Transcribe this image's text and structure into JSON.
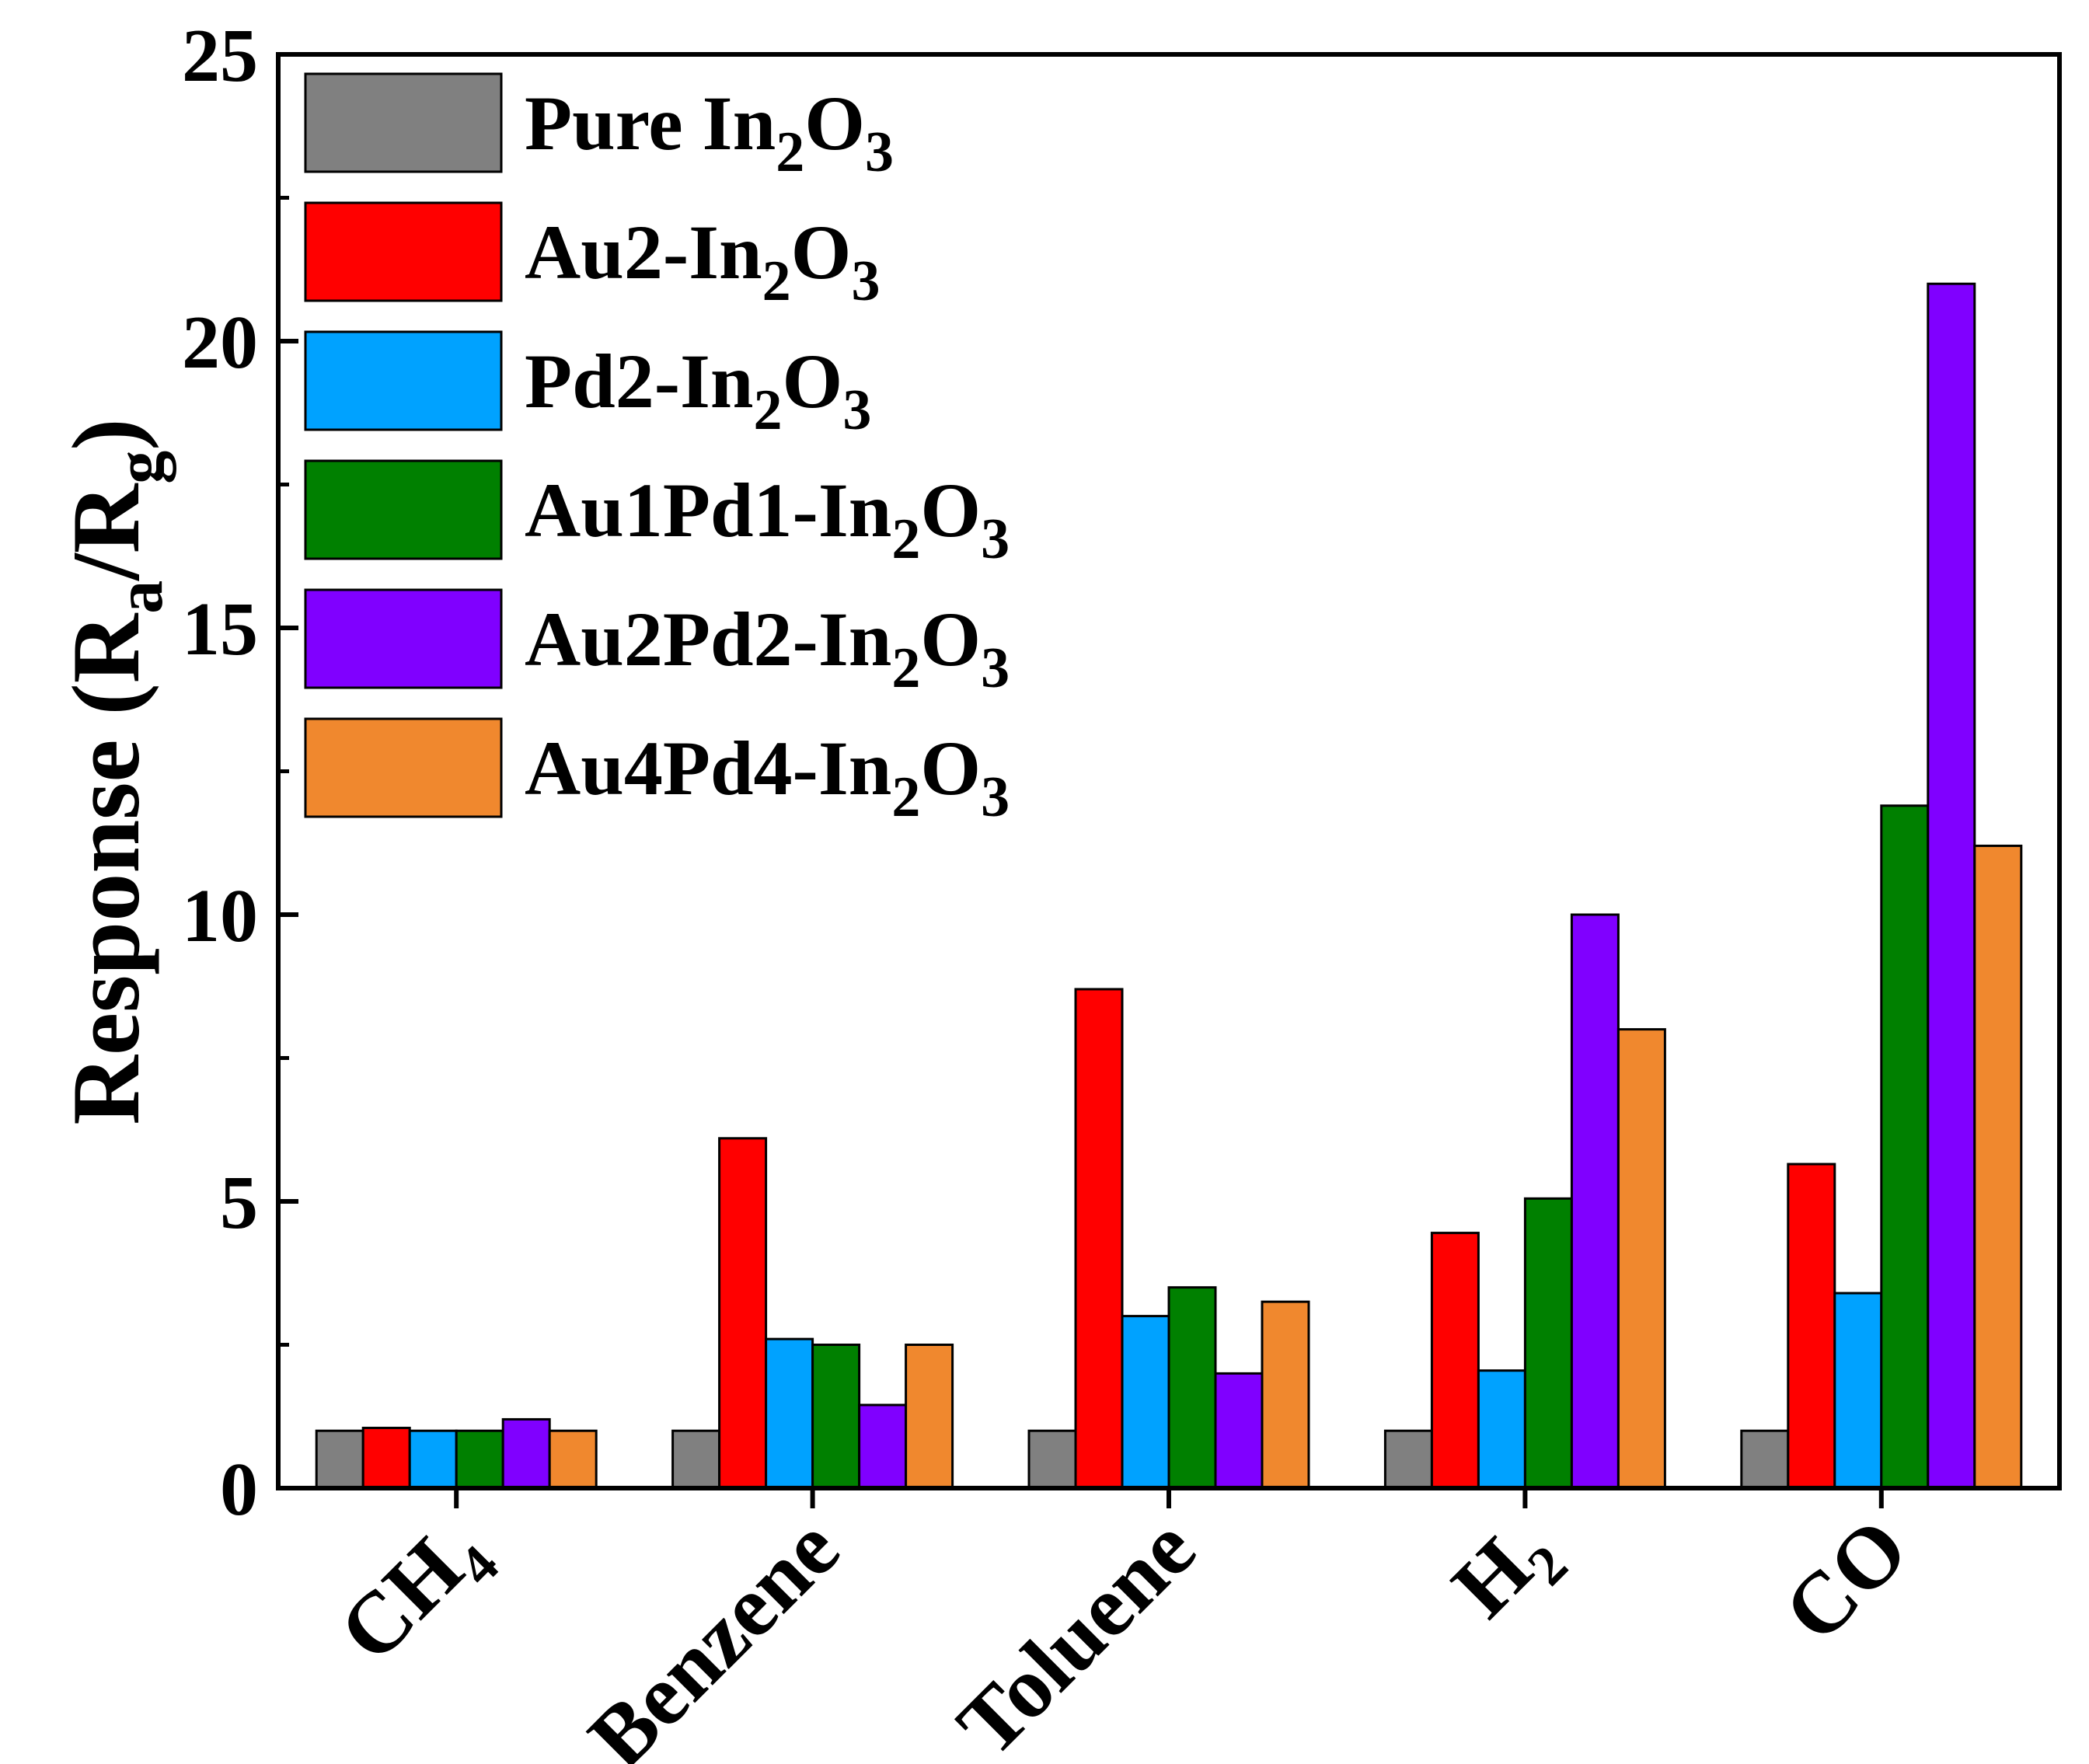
{
  "chart_data": {
    "type": "bar",
    "title": "",
    "xlabel": "",
    "ylabel": {
      "main": "Response (R",
      "sub_a": "a",
      "slash": "/R",
      "sub_g": "g",
      "close": ")"
    },
    "ylim": [
      0,
      25
    ],
    "yticks": [
      "0",
      "5",
      "10",
      "15",
      "20",
      "25"
    ],
    "grid": false,
    "legend_position": "top-left",
    "categories": [
      {
        "main": "CH",
        "sub": "4"
      },
      {
        "main": "Benzene",
        "sub": ""
      },
      {
        "main": "Toluene",
        "sub": ""
      },
      {
        "main": "H",
        "sub": "2"
      },
      {
        "main": "CO",
        "sub": ""
      }
    ],
    "series": [
      {
        "name": "Pure In2O3",
        "label_prefix": "Pure In",
        "color": "#808080",
        "values": [
          1.0,
          1.0,
          1.0,
          1.0,
          1.0
        ]
      },
      {
        "name": "Au2-In2O3",
        "label_prefix": "Au2-In",
        "color": "#ff0000",
        "values": [
          1.05,
          6.1,
          8.7,
          4.45,
          5.65
        ]
      },
      {
        "name": "Pd2-In2O3",
        "label_prefix": "Pd2-In",
        "color": "#00a2ff",
        "values": [
          1.0,
          2.6,
          3.0,
          2.05,
          3.4
        ]
      },
      {
        "name": "Au1Pd1-In2O3",
        "label_prefix": "Au1Pd1-In",
        "color": "#008000",
        "values": [
          1.0,
          2.5,
          3.5,
          5.05,
          11.9
        ]
      },
      {
        "name": "Au2Pd2-In2O3",
        "label_prefix": "Au2Pd2-In",
        "color": "#8000ff",
        "values": [
          1.2,
          1.45,
          2.0,
          10.0,
          21.0
        ]
      },
      {
        "name": "Au4Pd4-In2O3",
        "label_prefix": "Au4Pd4-In",
        "color": "#f0882e",
        "values": [
          1.0,
          2.5,
          3.25,
          8.0,
          11.2
        ]
      }
    ],
    "legend_suffix": {
      "sub2": "2",
      "o": "O",
      "sub3": "3"
    }
  }
}
